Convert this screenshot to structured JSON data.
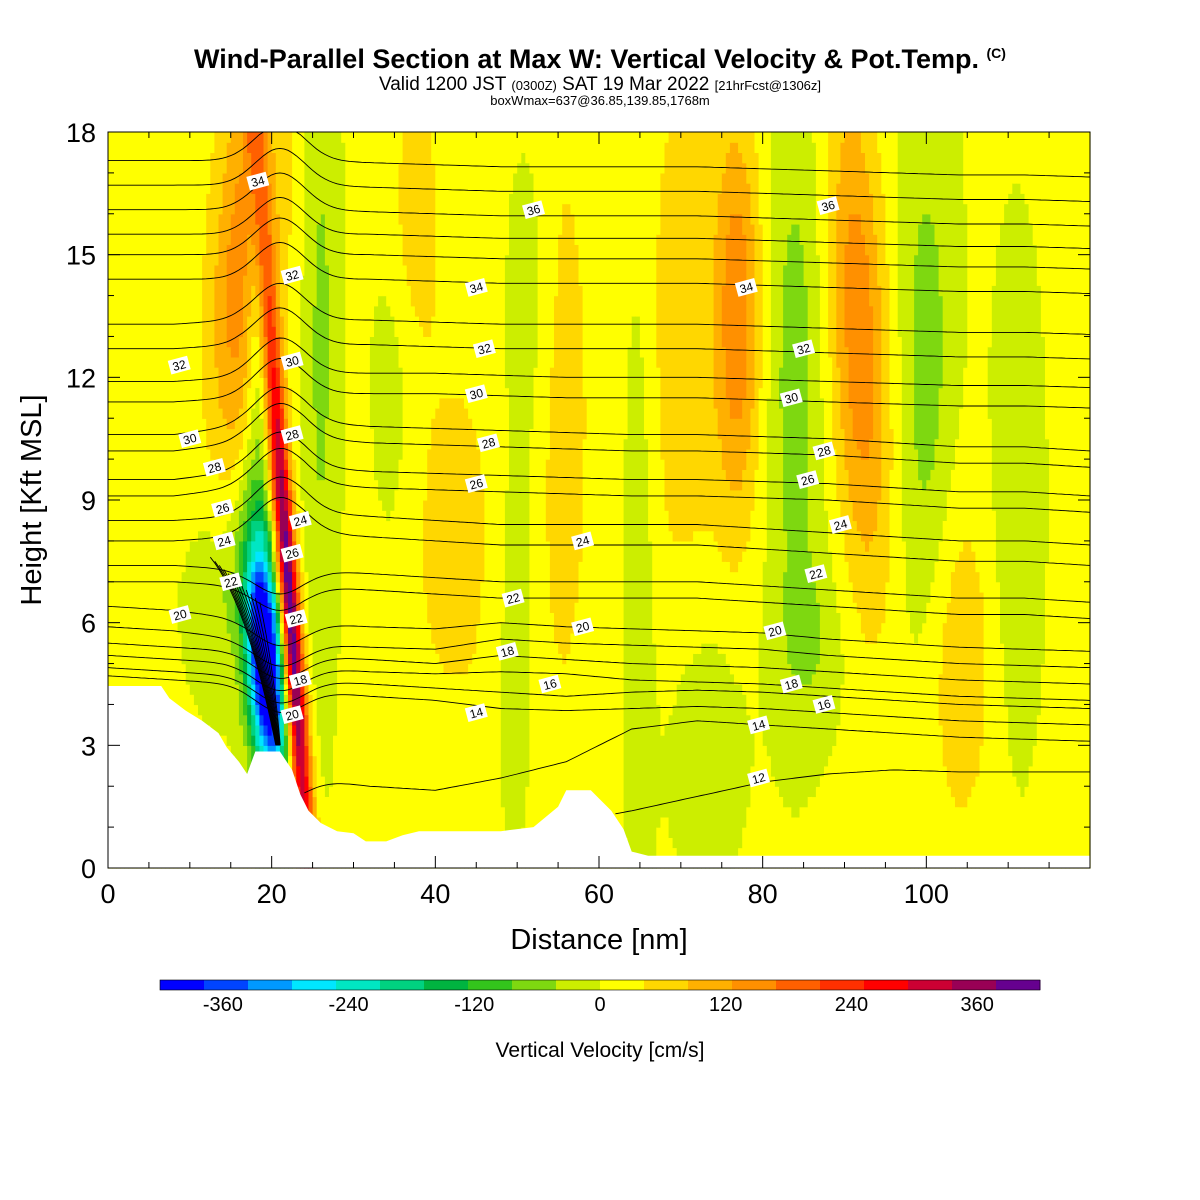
{
  "header": {
    "title_main": "Wind-Parallel Section at Max W: Vertical Velocity & Pot.Temp.",
    "title_mark": "(C)",
    "valid_pre": "Valid 1200 JST ",
    "valid_zone": "(0300Z)",
    "valid_mid": " SAT 19 Mar 2022 ",
    "valid_fcst": "[21hrFcst@1306z]",
    "box_info": "boxWmax=637@36.85,139.85,1768m"
  },
  "chart_data": {
    "type": "heatmap",
    "xlabel": "Distance [nm]",
    "ylabel": "Height [Kft MSL]",
    "xlim": [
      0,
      120
    ],
    "ylim": [
      0,
      18
    ],
    "x_ticks": [
      0,
      20,
      40,
      60,
      80,
      100
    ],
    "y_ticks": [
      0,
      3,
      6,
      9,
      12,
      15,
      18
    ],
    "colorbar": {
      "label": "Vertical Velocity [cm/s]",
      "range": [
        -420,
        420
      ],
      "step": 40,
      "tick_values": [
        -360,
        -240,
        -120,
        0,
        120,
        240,
        360
      ],
      "colors": [
        "#0000ff",
        "#0044ff",
        "#0099ff",
        "#00e6ff",
        "#00e6c3",
        "#00d280",
        "#00b440",
        "#33c41c",
        "#7ed810",
        "#ccee00",
        "#ffff00",
        "#ffd700",
        "#ffb000",
        "#ff9000",
        "#ff6000",
        "#ff3000",
        "#ff0000",
        "#cc0033",
        "#990055",
        "#66008f"
      ]
    },
    "terrain_top_kft": [
      [
        0,
        4.45
      ],
      [
        6.5,
        4.45
      ],
      [
        7.5,
        4.15
      ],
      [
        9.5,
        3.85
      ],
      [
        11.5,
        3.6
      ],
      [
        13.5,
        3.3
      ],
      [
        14.5,
        2.95
      ],
      [
        16,
        2.6
      ],
      [
        17,
        2.3
      ],
      [
        18,
        2.85
      ],
      [
        21,
        2.85
      ],
      [
        22.5,
        2.4
      ],
      [
        23.5,
        1.8
      ],
      [
        24.5,
        1.4
      ],
      [
        26,
        1.1
      ],
      [
        28,
        0.9
      ],
      [
        30,
        0.85
      ],
      [
        31.5,
        0.65
      ],
      [
        34,
        0.65
      ],
      [
        36,
        0.8
      ],
      [
        38,
        0.9
      ],
      [
        44,
        0.9
      ],
      [
        48,
        0.9
      ],
      [
        52,
        1.0
      ],
      [
        55,
        1.5
      ],
      [
        56,
        1.9
      ],
      [
        59,
        1.9
      ],
      [
        60,
        1.7
      ],
      [
        61.5,
        1.4
      ],
      [
        63,
        0.95
      ],
      [
        64,
        0.4
      ],
      [
        66,
        0.3
      ],
      [
        120,
        0.3
      ]
    ],
    "theta_contours": [
      {
        "label": "12",
        "h": [
          0.3,
          0.3,
          0.4,
          0.5,
          0.6,
          0.7,
          0.9,
          1.1,
          1.4,
          1.75,
          2.1,
          2.3,
          2.4,
          2.35,
          2.35,
          2.35
        ]
      },
      {
        "label": "14",
        "h": [
          2.5,
          2.4,
          2.3,
          2.2,
          2.0,
          1.9,
          2.2,
          2.6,
          3.4,
          3.6,
          3.5,
          3.4,
          3.3,
          3.2,
          3.15,
          3.1
        ]
      },
      {
        "label": "",
        "h": [
          4.7,
          4.6,
          4.5,
          4.35,
          4.2,
          4.1,
          3.9,
          3.85,
          3.9,
          3.95,
          3.9,
          3.8,
          3.7,
          3.6,
          3.55,
          3.5
        ]
      },
      {
        "label": "16",
        "h": [
          4.9,
          4.8,
          4.7,
          4.6,
          4.5,
          4.4,
          4.3,
          4.2,
          4.3,
          4.35,
          4.3,
          4.2,
          4.1,
          4.0,
          3.95,
          3.9
        ]
      },
      {
        "label": "18",
        "h": [
          5.2,
          5.1,
          5.0,
          4.9,
          4.8,
          4.75,
          4.8,
          4.75,
          4.6,
          4.55,
          4.5,
          4.4,
          4.3,
          4.2,
          4.15,
          4.1
        ]
      },
      {
        "label": "",
        "h": [
          5.5,
          5.4,
          5.3,
          5.2,
          5.1,
          5.0,
          5.2,
          5.1,
          5.0,
          4.95,
          4.9,
          4.8,
          4.7,
          4.6,
          4.55,
          4.5
        ]
      },
      {
        "label": "20",
        "h": [
          5.9,
          5.8,
          5.6,
          5.5,
          5.4,
          5.35,
          5.6,
          5.5,
          5.45,
          5.4,
          5.35,
          5.2,
          5.1,
          5.0,
          4.95,
          4.9
        ]
      },
      {
        "label": "",
        "h": [
          6.4,
          6.3,
          6.1,
          6.0,
          5.9,
          5.85,
          6.0,
          5.9,
          5.85,
          5.8,
          5.75,
          5.6,
          5.5,
          5.4,
          5.35,
          5.3
        ]
      },
      {
        "label": "22",
        "h": [
          7.0,
          7.0,
          6.9,
          6.9,
          6.8,
          6.7,
          6.6,
          6.6,
          6.6,
          6.6,
          6.5,
          6.4,
          6.3,
          6.2,
          6.2,
          6.1
        ]
      },
      {
        "label": "",
        "h": [
          7.4,
          7.4,
          7.3,
          7.3,
          7.2,
          7.1,
          7.0,
          7.0,
          7.0,
          7.0,
          6.9,
          6.8,
          6.7,
          6.6,
          6.6,
          6.5
        ]
      },
      {
        "label": "24",
        "h": [
          8.0,
          8.0,
          8.1,
          8.2,
          8.1,
          8.0,
          7.9,
          7.9,
          7.9,
          7.9,
          7.8,
          7.7,
          7.6,
          7.5,
          7.5,
          7.4
        ]
      },
      {
        "label": "",
        "h": [
          8.5,
          8.5,
          8.6,
          8.7,
          8.6,
          8.5,
          8.4,
          8.4,
          8.4,
          8.4,
          8.3,
          8.2,
          8.1,
          8.0,
          8.0,
          7.9
        ]
      },
      {
        "label": "26",
        "h": [
          9.1,
          9.1,
          9.3,
          9.4,
          9.3,
          9.25,
          9.2,
          9.15,
          9.1,
          9.1,
          9.05,
          9.0,
          8.9,
          8.8,
          8.8,
          8.7
        ]
      },
      {
        "label": "",
        "h": [
          9.5,
          9.5,
          9.7,
          9.8,
          9.7,
          9.65,
          9.6,
          9.55,
          9.5,
          9.5,
          9.45,
          9.4,
          9.3,
          9.2,
          9.2,
          9.1
        ]
      },
      {
        "label": "28",
        "h": [
          10.2,
          10.2,
          10.4,
          10.5,
          10.4,
          10.35,
          10.3,
          10.25,
          10.2,
          10.2,
          10.15,
          10.1,
          10.0,
          9.9,
          9.9,
          9.8
        ]
      },
      {
        "label": "",
        "h": [
          10.6,
          10.6,
          10.8,
          10.9,
          10.8,
          10.75,
          10.7,
          10.65,
          10.6,
          10.6,
          10.55,
          10.5,
          10.4,
          10.3,
          10.3,
          10.2
        ]
      },
      {
        "label": "30",
        "h": [
          11.4,
          11.4,
          11.5,
          11.6,
          11.6,
          11.6,
          11.55,
          11.5,
          11.5,
          11.5,
          11.45,
          11.4,
          11.35,
          11.3,
          11.3,
          11.25
        ]
      },
      {
        "label": "",
        "h": [
          11.9,
          11.9,
          12.0,
          12.1,
          12.1,
          12.1,
          12.05,
          12.0,
          12.0,
          12.0,
          11.95,
          11.9,
          11.85,
          11.8,
          11.8,
          11.75
        ]
      },
      {
        "label": "32",
        "h": [
          12.7,
          12.7,
          12.8,
          12.8,
          12.8,
          12.75,
          12.7,
          12.7,
          12.7,
          12.7,
          12.65,
          12.6,
          12.55,
          12.5,
          12.5,
          12.45
        ]
      },
      {
        "label": "",
        "h": [
          13.3,
          13.3,
          13.4,
          13.4,
          13.4,
          13.35,
          13.3,
          13.3,
          13.3,
          13.3,
          13.25,
          13.2,
          13.15,
          13.1,
          13.1,
          13.05
        ]
      },
      {
        "label": "34",
        "h": [
          14.4,
          14.4,
          14.4,
          14.4,
          14.4,
          14.35,
          14.3,
          14.3,
          14.3,
          14.3,
          14.25,
          14.2,
          14.15,
          14.1,
          14.1,
          14.05
        ]
      },
      {
        "label": "",
        "h": [
          15.0,
          15.0,
          15.0,
          15.0,
          15.0,
          14.95,
          14.9,
          14.9,
          14.9,
          14.9,
          14.85,
          14.8,
          14.75,
          14.7,
          14.7,
          14.65
        ]
      },
      {
        "label": "",
        "h": [
          15.5,
          15.5,
          15.5,
          15.5,
          15.5,
          15.45,
          15.4,
          15.4,
          15.4,
          15.4,
          15.35,
          15.3,
          15.25,
          15.2,
          15.2,
          15.15
        ]
      },
      {
        "label": "36",
        "h": [
          16.1,
          16.1,
          16.1,
          16.1,
          16.05,
          16.0,
          15.95,
          15.95,
          15.95,
          15.95,
          15.9,
          15.85,
          15.8,
          15.75,
          15.75,
          15.7
        ]
      },
      {
        "label": "",
        "h": [
          16.7,
          16.7,
          16.7,
          16.7,
          16.65,
          16.6,
          16.55,
          16.55,
          16.55,
          16.55,
          16.5,
          16.45,
          16.4,
          16.35,
          16.35,
          16.3
        ]
      },
      {
        "label": "",
        "h": [
          17.3,
          17.3,
          17.3,
          17.3,
          17.25,
          17.2,
          17.15,
          17.15,
          17.15,
          17.15,
          17.1,
          17.05,
          17.0,
          16.95,
          16.95,
          16.9
        ]
      }
    ],
    "contour_labels": [
      {
        "text": "34",
        "x": 18.3,
        "y": 16.8
      },
      {
        "text": "32",
        "x": 22.5,
        "y": 14.5
      },
      {
        "text": "30",
        "x": 22.5,
        "y": 12.4
      },
      {
        "text": "28",
        "x": 22.5,
        "y": 10.6
      },
      {
        "text": "24",
        "x": 23.5,
        "y": 8.5
      },
      {
        "text": "26",
        "x": 22.5,
        "y": 7.7
      },
      {
        "text": "22",
        "x": 23.0,
        "y": 6.1
      },
      {
        "text": "18",
        "x": 23.5,
        "y": 4.6
      },
      {
        "text": "20",
        "x": 22.5,
        "y": 3.75
      },
      {
        "text": "32",
        "x": 8.7,
        "y": 12.3
      },
      {
        "text": "30",
        "x": 10.0,
        "y": 10.5
      },
      {
        "text": "28",
        "x": 13.0,
        "y": 9.8
      },
      {
        "text": "26",
        "x": 14.0,
        "y": 8.8
      },
      {
        "text": "24",
        "x": 14.2,
        "y": 8.0
      },
      {
        "text": "22",
        "x": 15.0,
        "y": 7.0
      },
      {
        "text": "20",
        "x": 8.8,
        "y": 6.2
      },
      {
        "text": "36",
        "x": 52.0,
        "y": 16.1
      },
      {
        "text": "34",
        "x": 45.0,
        "y": 14.2
      },
      {
        "text": "32",
        "x": 46.0,
        "y": 12.7
      },
      {
        "text": "30",
        "x": 45.0,
        "y": 11.6
      },
      {
        "text": "28",
        "x": 46.5,
        "y": 10.4
      },
      {
        "text": "26",
        "x": 45.0,
        "y": 9.4
      },
      {
        "text": "24",
        "x": 58.0,
        "y": 8.0
      },
      {
        "text": "22",
        "x": 49.5,
        "y": 6.6
      },
      {
        "text": "20",
        "x": 58.0,
        "y": 5.9
      },
      {
        "text": "18",
        "x": 48.8,
        "y": 5.3
      },
      {
        "text": "16",
        "x": 54.0,
        "y": 4.5
      },
      {
        "text": "14",
        "x": 45.0,
        "y": 3.8
      },
      {
        "text": "36",
        "x": 88.0,
        "y": 16.2
      },
      {
        "text": "34",
        "x": 78.0,
        "y": 14.2
      },
      {
        "text": "32",
        "x": 85.0,
        "y": 12.7
      },
      {
        "text": "30",
        "x": 83.5,
        "y": 11.5
      },
      {
        "text": "28",
        "x": 87.5,
        "y": 10.2
      },
      {
        "text": "26",
        "x": 85.5,
        "y": 9.5
      },
      {
        "text": "24",
        "x": 89.5,
        "y": 8.4
      },
      {
        "text": "22",
        "x": 86.5,
        "y": 7.2
      },
      {
        "text": "20",
        "x": 81.5,
        "y": 5.8
      },
      {
        "text": "18",
        "x": 83.5,
        "y": 4.5
      },
      {
        "text": "16",
        "x": 87.5,
        "y": 4.0
      },
      {
        "text": "14",
        "x": 79.5,
        "y": 3.5
      },
      {
        "text": "12",
        "x": 79.5,
        "y": 2.2
      }
    ]
  }
}
